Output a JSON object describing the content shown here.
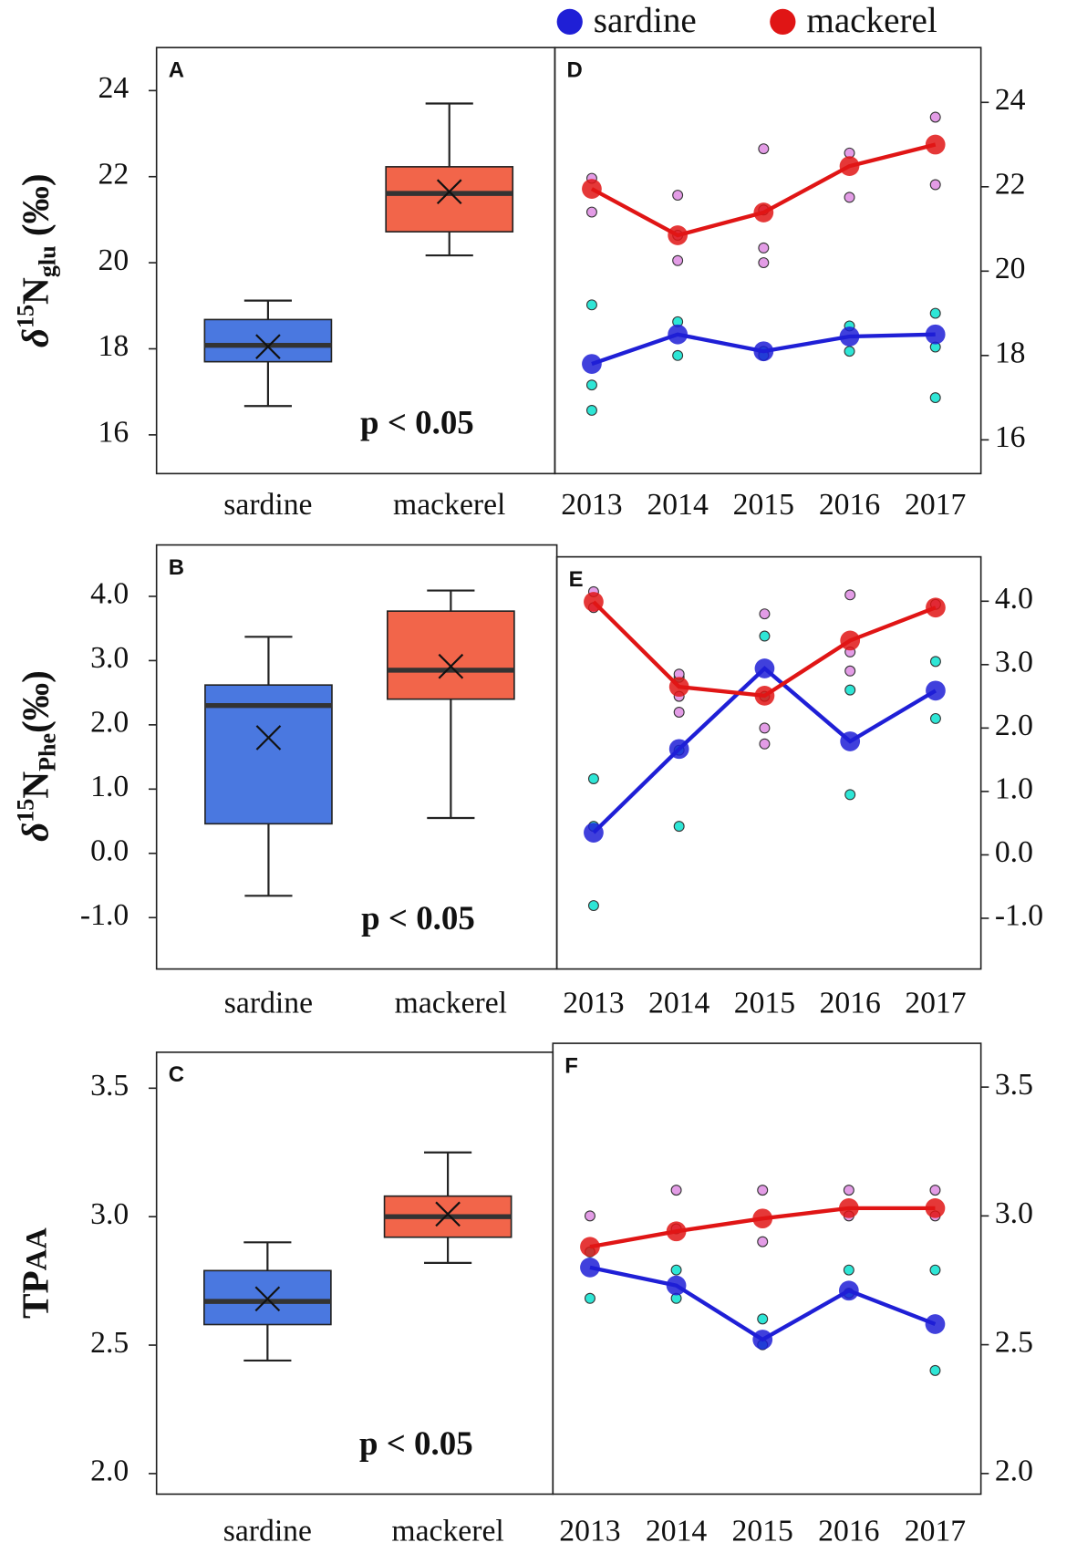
{
  "chart_data": [
    {
      "type": "box",
      "label": "A",
      "ylabel": [
        "δ",
        "15",
        "N",
        "glu",
        " (‰)"
      ],
      "categories": [
        "sardine",
        "mackerel"
      ],
      "colors": [
        "#4a78e0",
        "#f2654a"
      ],
      "boxes": [
        {
          "min": 16.67,
          "q1": 17.7,
          "median": 18.08,
          "q3": 18.68,
          "max": 19.12,
          "mean": 18.05
        },
        {
          "min": 20.17,
          "q1": 20.72,
          "median": 21.61,
          "q3": 22.23,
          "max": 23.7,
          "mean": 21.65
        }
      ],
      "annotation": "p < 0.05",
      "ylim": [
        15.1,
        25.0
      ],
      "yticks": [
        16,
        18,
        20,
        22,
        24
      ]
    },
    {
      "type": "box",
      "label": "B",
      "ylabel": [
        "δ",
        "15",
        "N",
        "Phe",
        "(‰)"
      ],
      "categories": [
        "sardine",
        "mackerel"
      ],
      "colors": [
        "#4a78e0",
        "#f2654a"
      ],
      "boxes": [
        {
          "min": -0.66,
          "q1": 0.46,
          "median": 2.3,
          "q3": 2.62,
          "max": 3.37,
          "mean": 1.8
        },
        {
          "min": 0.55,
          "q1": 2.4,
          "median": 2.85,
          "q3": 3.77,
          "max": 4.09,
          "mean": 2.91
        }
      ],
      "annotation": "p < 0.05",
      "ylim": [
        -1.8,
        4.8
      ],
      "yticks": [
        {
          "value": -1,
          "label": "-1.0"
        },
        {
          "value": 0,
          "label": "0.0"
        },
        {
          "value": 1,
          "label": "1.0"
        },
        {
          "value": 2,
          "label": "2.0"
        },
        {
          "value": 3,
          "label": "3.0"
        },
        {
          "value": 4,
          "label": "4.0"
        }
      ]
    },
    {
      "type": "box",
      "label": "C",
      "ylabel": [
        "TP",
        "AA"
      ],
      "categories": [
        "sardine",
        "mackerel"
      ],
      "colors": [
        "#4a78e0",
        "#f2654a"
      ],
      "boxes": [
        {
          "min": 2.44,
          "q1": 2.58,
          "median": 2.67,
          "q3": 2.79,
          "max": 2.9,
          "mean": 2.68
        },
        {
          "min": 2.82,
          "q1": 2.92,
          "median": 3.0,
          "q3": 3.08,
          "max": 3.25,
          "mean": 3.01
        }
      ],
      "annotation": "p < 0.05",
      "ylim": [
        1.92,
        3.64
      ],
      "yticks": [
        {
          "value": 2,
          "label": "2.0"
        },
        2.5,
        {
          "value": 3,
          "label": "3.0"
        },
        3.5
      ]
    },
    {
      "type": "line",
      "label": "D",
      "legend": "top",
      "x": [
        2013,
        2014,
        2015,
        2016,
        2017
      ],
      "xlim": [
        2012.57,
        2017.53
      ],
      "ylim": [
        15.2,
        25.3
      ],
      "yticks": [
        16,
        18,
        20,
        22,
        24
      ],
      "series": [
        {
          "name": "sardine",
          "color": "#1f1fd6",
          "values": [
            17.8,
            18.5,
            18.1,
            18.45,
            18.5
          ]
        },
        {
          "name": "mackerel",
          "color": "#e01515",
          "values": [
            21.95,
            20.85,
            21.39,
            22.49,
            23.0
          ]
        }
      ],
      "points": [
        {
          "color": "#2ee6d6",
          "x": [
            2013,
            2013,
            2013,
            2014,
            2014,
            2015,
            2015,
            2016,
            2016,
            2017,
            2017,
            2017
          ],
          "values": [
            19.2,
            17.3,
            16.7,
            18.8,
            18.0,
            18.1,
            18.0,
            18.7,
            18.1,
            19.0,
            18.2,
            17.0
          ]
        },
        {
          "color": "#e39ce6",
          "x": [
            2013,
            2013,
            2014,
            2014,
            2014,
            2015,
            2015,
            2015,
            2015,
            2016,
            2016,
            2017,
            2017
          ],
          "values": [
            22.2,
            21.4,
            21.8,
            20.85,
            20.25,
            22.9,
            21.45,
            20.55,
            20.2,
            22.8,
            21.75,
            23.65,
            22.05
          ]
        }
      ]
    },
    {
      "type": "line",
      "label": "E",
      "x": [
        2013,
        2014,
        2015,
        2016,
        2017
      ],
      "xlim": [
        2012.57,
        2017.53
      ],
      "ylim": [
        -1.8,
        4.7
      ],
      "yticks": [
        {
          "value": -1,
          "label": "-1.0"
        },
        {
          "value": 0,
          "label": "0.0"
        },
        {
          "value": 1,
          "label": "1.0"
        },
        {
          "value": 2,
          "label": "2.0"
        },
        {
          "value": 3,
          "label": "3.0"
        },
        {
          "value": 4,
          "label": "4.0"
        }
      ],
      "series": [
        {
          "color": "#1f1fd6",
          "values": [
            0.35,
            1.67,
            2.94,
            1.79,
            2.59
          ]
        },
        {
          "color": "#e01515",
          "values": [
            3.99,
            2.65,
            2.51,
            3.38,
            3.9
          ]
        }
      ],
      "points": [
        {
          "color": "#2ee6d6",
          "x": [
            2013,
            2013,
            2013,
            2014,
            2014,
            2014,
            2015,
            2015,
            2016,
            2016,
            2017,
            2017
          ],
          "values": [
            1.2,
            0.45,
            -0.8,
            2.8,
            1.65,
            0.45,
            3.45,
            2.5,
            2.6,
            0.95,
            3.05,
            2.15
          ]
        },
        {
          "color": "#e39ce6",
          "x": [
            2013,
            2013,
            2014,
            2014,
            2014,
            2015,
            2015,
            2015,
            2016,
            2016,
            2016,
            2017
          ],
          "values": [
            4.15,
            3.9,
            2.85,
            2.5,
            2.25,
            3.8,
            2.0,
            1.75,
            4.1,
            3.2,
            2.9,
            3.95
          ]
        }
      ]
    },
    {
      "type": "line",
      "label": "F",
      "x": [
        2013,
        2014,
        2015,
        2016,
        2017
      ],
      "xlim": [
        2012.57,
        2017.53
      ],
      "ylim": [
        1.92,
        3.67
      ],
      "yticks": [
        {
          "value": 2,
          "label": "2.0"
        },
        2.5,
        {
          "value": 3,
          "label": "3.0"
        },
        3.5
      ],
      "series": [
        {
          "color": "#1f1fd6",
          "values": [
            2.8,
            2.73,
            2.52,
            2.71,
            2.58
          ]
        },
        {
          "color": "#e01515",
          "values": [
            2.88,
            2.94,
            2.99,
            3.03,
            3.03
          ]
        }
      ],
      "points": [
        {
          "color": "#2ee6d6",
          "x": [
            2013,
            2013,
            2014,
            2014,
            2015,
            2015,
            2016,
            2016,
            2017,
            2017
          ],
          "values": [
            2.86,
            2.68,
            2.79,
            2.68,
            2.6,
            2.5,
            2.79,
            2.7,
            2.79,
            2.4
          ]
        },
        {
          "color": "#e39ce6",
          "x": [
            2013,
            2014,
            2014,
            2015,
            2015,
            2016,
            2016,
            2017,
            2017
          ],
          "values": [
            3.0,
            3.1,
            2.95,
            3.1,
            2.9,
            3.1,
            3.0,
            3.1,
            3.0
          ]
        }
      ]
    }
  ]
}
